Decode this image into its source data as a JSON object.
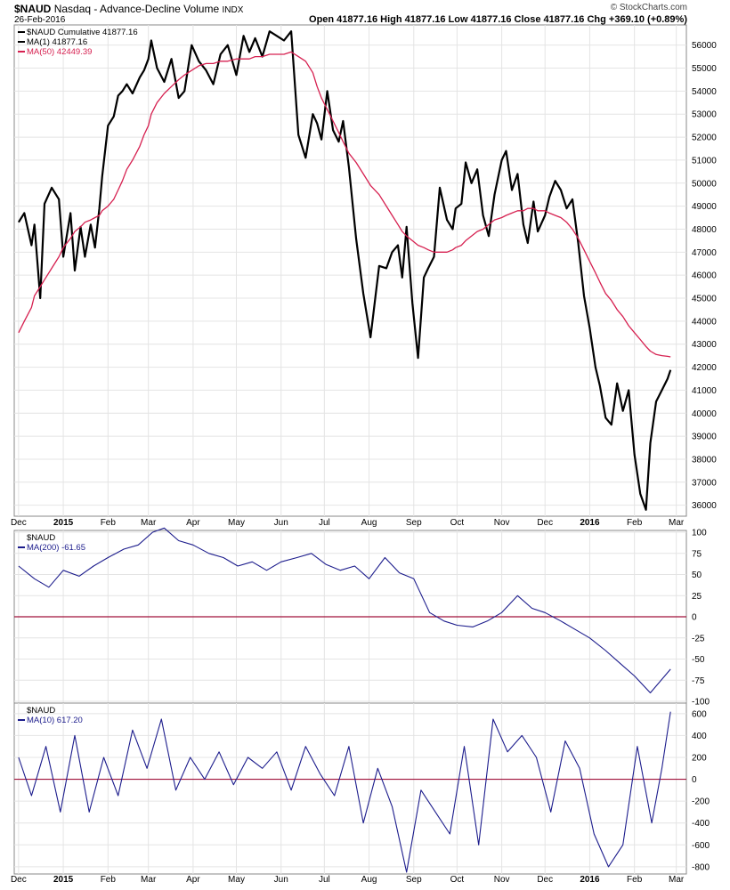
{
  "header": {
    "symbol": "$NAUD",
    "name": "Nasdaq - Advance-Decline Volume",
    "exchange": "INDX",
    "date": "26-Feb-2016",
    "ohlc_text": "Open 41877.16  High 41877.16  Low 41877.16  Close 41877.16  Chg +369.10 (+0.89%)",
    "watermark": "© StockCharts.com"
  },
  "colors": {
    "price": "#000000",
    "ma50": "#d62050",
    "indicator": "#1c1c8c",
    "zero": "#a0103a",
    "grid": "#e4e4e4"
  },
  "x_axis_labels": [
    "Dec",
    "2015",
    "Feb",
    "Mar",
    "Apr",
    "May",
    "Jun",
    "Jul",
    "Aug",
    "Sep",
    "Oct",
    "Nov",
    "Dec",
    "2016",
    "Feb",
    "Mar"
  ],
  "chart_data": [
    {
      "type": "line",
      "panel": "main",
      "legend": [
        "$NAUD Cumulative 41877.16",
        "MA(1) 41877.16",
        "MA(50) 42449.39"
      ],
      "y_ticks": [
        56000,
        55000,
        54000,
        53000,
        52000,
        51000,
        50000,
        49000,
        48000,
        47000,
        46000,
        45000,
        44000,
        43000,
        42000,
        41000,
        40000,
        39000,
        38000,
        37000,
        36000
      ],
      "ylim": [
        35600,
        56800
      ],
      "x": [
        "2014-12-01",
        "2014-12-05",
        "2014-12-10",
        "2014-12-12",
        "2014-12-16",
        "2014-12-19",
        "2014-12-24",
        "2014-12-29",
        "2015-01-01",
        "2015-01-06",
        "2015-01-09",
        "2015-01-13",
        "2015-01-16",
        "2015-01-20",
        "2015-01-23",
        "2015-01-26",
        "2015-01-28",
        "2015-02-01",
        "2015-02-05",
        "2015-02-08",
        "2015-02-11",
        "2015-02-14",
        "2015-02-18",
        "2015-02-23",
        "2015-02-26",
        "2015-03-01",
        "2015-03-03",
        "2015-03-07",
        "2015-03-12",
        "2015-03-17",
        "2015-03-22",
        "2015-03-26",
        "2015-03-31",
        "2015-04-05",
        "2015-04-10",
        "2015-04-15",
        "2015-04-20",
        "2015-04-25",
        "2015-05-01",
        "2015-05-06",
        "2015-05-10",
        "2015-05-14",
        "2015-05-19",
        "2015-05-24",
        "2015-05-29",
        "2015-06-03",
        "2015-06-08",
        "2015-06-13",
        "2015-06-18",
        "2015-06-23",
        "2015-06-26",
        "2015-06-29",
        "2015-07-03",
        "2015-07-07",
        "2015-07-11",
        "2015-07-14",
        "2015-07-18",
        "2015-07-23",
        "2015-07-28",
        "2015-08-02",
        "2015-08-08",
        "2015-08-13",
        "2015-08-17",
        "2015-08-21",
        "2015-08-24",
        "2015-08-27",
        "2015-08-31",
        "2015-09-04",
        "2015-09-08",
        "2015-09-11",
        "2015-09-15",
        "2015-09-19",
        "2015-09-24",
        "2015-09-28",
        "2015-09-30",
        "2015-10-04",
        "2015-10-07",
        "2015-10-11",
        "2015-10-15",
        "2015-10-19",
        "2015-10-23",
        "2015-10-27",
        "2015-11-01",
        "2015-11-04",
        "2015-11-08",
        "2015-11-12",
        "2015-11-16",
        "2015-11-19",
        "2015-11-23",
        "2015-11-26",
        "2015-12-01",
        "2015-12-04",
        "2015-12-08",
        "2015-12-12",
        "2015-12-16",
        "2015-12-20",
        "2015-12-24",
        "2015-12-28",
        "2016-01-01",
        "2016-01-05",
        "2016-01-08",
        "2016-01-12",
        "2016-01-16",
        "2016-01-20",
        "2016-01-24",
        "2016-01-28",
        "2016-02-01",
        "2016-02-05",
        "2016-02-09",
        "2016-02-12",
        "2016-02-16",
        "2016-02-20",
        "2016-02-24",
        "2016-02-26"
      ],
      "series": [
        {
          "name": "$NAUD Cumulative",
          "values": [
            48300,
            48700,
            47300,
            48200,
            45000,
            49100,
            49800,
            49300,
            46800,
            48700,
            46200,
            48100,
            46800,
            48200,
            47200,
            48900,
            50300,
            52500,
            52900,
            53800,
            54000,
            54300,
            53900,
            54600,
            54900,
            55400,
            56200,
            55000,
            54400,
            55400,
            53700,
            54000,
            56000,
            55300,
            54900,
            54300,
            55600,
            56000,
            54700,
            56400,
            55700,
            56300,
            55500,
            56600,
            56400,
            56200,
            56600,
            52100,
            51100,
            53000,
            52600,
            51900,
            54000,
            52300,
            51800,
            52700,
            50700,
            47600,
            45200,
            43300,
            46400,
            46300,
            47000,
            47300,
            45900,
            48100,
            44800,
            42400,
            45900,
            46300,
            46800,
            49800,
            48400,
            48000,
            48900,
            49100,
            50900,
            50000,
            50600,
            48600,
            47700,
            49500,
            51000,
            51400,
            49700,
            50400,
            48200,
            47400,
            49200,
            47900,
            48600,
            49400,
            50100,
            49700,
            48900,
            49300,
            47400,
            45100,
            43700,
            42000,
            41200,
            39800,
            39500,
            41300,
            40100,
            41000,
            38200,
            36500,
            35800,
            38700,
            40500,
            41000,
            41500,
            41877
          ]
        },
        {
          "name": "MA(50)",
          "values": [
            43500,
            44000,
            44600,
            45100,
            45500,
            45800,
            46300,
            46800,
            47200,
            47600,
            47900,
            48100,
            48300,
            48400,
            48500,
            48600,
            48800,
            49000,
            49300,
            49700,
            50100,
            50600,
            51000,
            51600,
            52100,
            52500,
            53000,
            53500,
            53900,
            54200,
            54500,
            54700,
            54900,
            55100,
            55200,
            55200,
            55300,
            55300,
            55400,
            55400,
            55400,
            55500,
            55500,
            55600,
            55600,
            55600,
            55700,
            55500,
            55300,
            54800,
            54200,
            53700,
            53200,
            52700,
            52200,
            51800,
            51300,
            50900,
            50400,
            49900,
            49500,
            49000,
            48600,
            48200,
            47900,
            47700,
            47500,
            47300,
            47200,
            47100,
            47000,
            47000,
            47000,
            47100,
            47200,
            47300,
            47500,
            47700,
            47900,
            48000,
            48200,
            48400,
            48500,
            48600,
            48700,
            48800,
            48800,
            48900,
            48900,
            48800,
            48800,
            48700,
            48600,
            48500,
            48300,
            48000,
            47600,
            47100,
            46600,
            46100,
            45700,
            45200,
            44900,
            44500,
            44200,
            43800,
            43500,
            43200,
            42900,
            42700,
            42550,
            42500,
            42470,
            42449
          ]
        }
      ]
    },
    {
      "type": "line",
      "panel": "ma200",
      "legend": [
        "$NAUD",
        "MA(200) -61.65"
      ],
      "y_ticks": [
        100,
        75,
        50,
        25,
        0,
        -25,
        -50,
        -75,
        -100
      ],
      "ylim": [
        -100,
        100
      ],
      "reference_line": 0,
      "x": [
        "2014-12-01",
        "2014-12-12",
        "2014-12-22",
        "2015-01-01",
        "2015-01-12",
        "2015-01-22",
        "2015-02-01",
        "2015-02-12",
        "2015-02-22",
        "2015-03-04",
        "2015-03-12",
        "2015-03-22",
        "2015-04-01",
        "2015-04-12",
        "2015-04-22",
        "2015-05-02",
        "2015-05-12",
        "2015-05-22",
        "2015-06-01",
        "2015-06-12",
        "2015-06-22",
        "2015-07-02",
        "2015-07-12",
        "2015-07-22",
        "2015-08-01",
        "2015-08-12",
        "2015-08-22",
        "2015-09-01",
        "2015-09-12",
        "2015-09-22",
        "2015-10-01",
        "2015-10-12",
        "2015-10-22",
        "2015-11-01",
        "2015-11-12",
        "2015-11-22",
        "2015-12-01",
        "2015-12-12",
        "2015-12-22",
        "2016-01-01",
        "2016-01-12",
        "2016-01-22",
        "2016-02-01",
        "2016-02-12",
        "2016-02-22",
        "2016-02-26"
      ],
      "series": [
        {
          "name": "MA(200)",
          "values": [
            60,
            45,
            35,
            55,
            48,
            60,
            70,
            80,
            85,
            100,
            105,
            90,
            85,
            75,
            70,
            60,
            65,
            55,
            65,
            70,
            75,
            62,
            55,
            60,
            45,
            70,
            52,
            45,
            5,
            -5,
            -10,
            -12,
            -5,
            5,
            25,
            10,
            5,
            -5,
            -15,
            -25,
            -40,
            -55,
            -70,
            -90,
            -70,
            -62
          ]
        }
      ]
    },
    {
      "type": "line",
      "panel": "ma10",
      "legend": [
        "$NAUD",
        "MA(10) 617.20"
      ],
      "y_ticks": [
        600,
        400,
        200,
        0,
        -200,
        -400,
        -600,
        -800
      ],
      "ylim": [
        -850,
        680
      ],
      "reference_line": 0,
      "x": [
        "2014-12-01",
        "2014-12-10",
        "2014-12-20",
        "2014-12-30",
        "2015-01-09",
        "2015-01-19",
        "2015-01-29",
        "2015-02-08",
        "2015-02-18",
        "2015-02-28",
        "2015-03-10",
        "2015-03-20",
        "2015-03-30",
        "2015-04-09",
        "2015-04-19",
        "2015-04-29",
        "2015-05-09",
        "2015-05-19",
        "2015-05-29",
        "2015-06-08",
        "2015-06-18",
        "2015-06-28",
        "2015-07-08",
        "2015-07-18",
        "2015-07-28",
        "2015-08-07",
        "2015-08-17",
        "2015-08-27",
        "2015-09-06",
        "2015-09-16",
        "2015-09-26",
        "2015-10-06",
        "2015-10-16",
        "2015-10-26",
        "2015-11-05",
        "2015-11-15",
        "2015-11-25",
        "2015-12-05",
        "2015-12-15",
        "2015-12-25",
        "2016-01-04",
        "2016-01-14",
        "2016-01-24",
        "2016-02-03",
        "2016-02-13",
        "2016-02-20",
        "2016-02-26"
      ],
      "series": [
        {
          "name": "MA(10)",
          "values": [
            200,
            -150,
            300,
            -300,
            400,
            -300,
            200,
            -150,
            450,
            100,
            550,
            -100,
            200,
            0,
            250,
            -50,
            200,
            100,
            250,
            -100,
            300,
            50,
            -150,
            300,
            -400,
            100,
            -250,
            -850,
            -100,
            -300,
            -500,
            300,
            -600,
            550,
            250,
            400,
            200,
            -300,
            350,
            100,
            -500,
            -800,
            -600,
            300,
            -400,
            100,
            617
          ]
        }
      ]
    }
  ]
}
